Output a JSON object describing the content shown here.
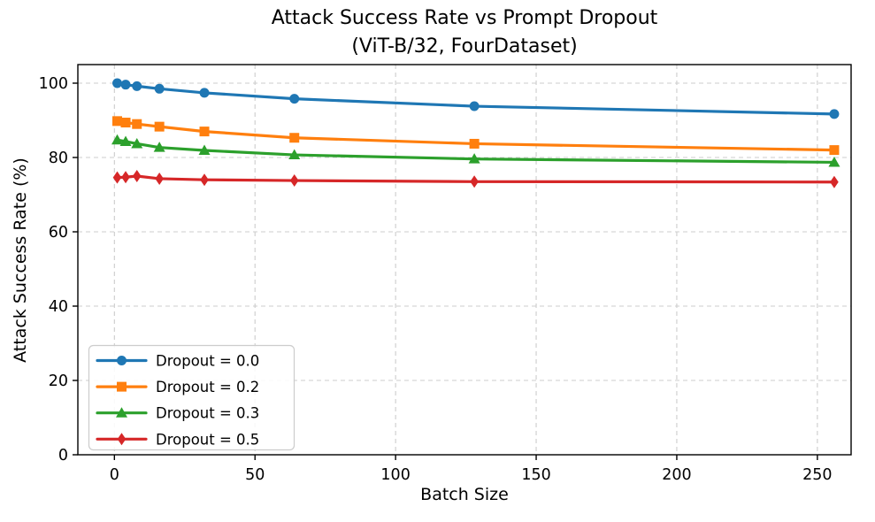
{
  "figure": {
    "title_line1": "Attack Success Rate vs Prompt Dropout",
    "title_line2": "(ViT-B/32, FourDataset)"
  },
  "chart_data": {
    "type": "line",
    "title": "Attack Success Rate vs Prompt Dropout (ViT-B/32, FourDataset)",
    "xlabel": "Batch Size",
    "ylabel": "Attack Success Rate (%)",
    "x": [
      1,
      4,
      8,
      16,
      32,
      64,
      128,
      256
    ],
    "series": [
      {
        "name": "Dropout = 0.0",
        "marker": "circle",
        "color": "#1f77b4",
        "values": [
          100.0,
          99.6,
          99.2,
          98.5,
          97.4,
          95.8,
          93.8,
          91.7
        ]
      },
      {
        "name": "Dropout = 0.2",
        "marker": "square",
        "color": "#ff7f0e",
        "values": [
          89.8,
          89.4,
          89.0,
          88.3,
          87.0,
          85.3,
          83.7,
          82.0
        ]
      },
      {
        "name": "Dropout = 0.3",
        "marker": "triangle",
        "color": "#2ca02c",
        "values": [
          84.7,
          84.3,
          83.7,
          82.7,
          81.9,
          80.7,
          79.6,
          78.7
        ]
      },
      {
        "name": "Dropout = 0.5",
        "marker": "diamond",
        "color": "#d62728",
        "values": [
          74.6,
          74.7,
          75.0,
          74.3,
          74.0,
          73.8,
          73.5,
          73.4
        ]
      }
    ],
    "xlim": [
      -13,
      262
    ],
    "ylim": [
      0,
      105
    ],
    "xticks": [
      0,
      50,
      100,
      150,
      200,
      250
    ],
    "yticks": [
      0,
      20,
      40,
      60,
      80,
      100
    ],
    "grid": true,
    "legend_position": "lower left"
  },
  "style_colors": {
    "grid": "#cccccc",
    "spine": "#000000",
    "legend_border": "#cccccc",
    "legend_background": "#ffffff"
  }
}
